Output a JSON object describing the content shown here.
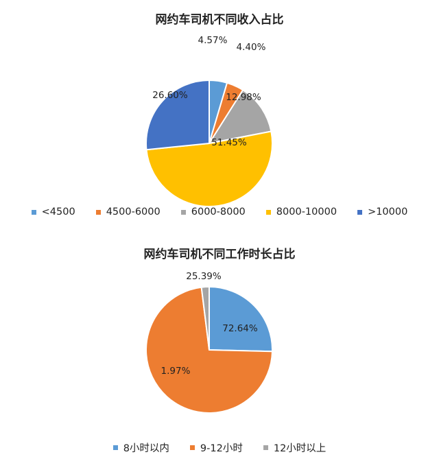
{
  "chart_data": [
    {
      "type": "pie",
      "title": "网约车司机不同收入占比",
      "categories": [
        "<4500",
        "4500-6000",
        "6000-8000",
        "8000-10000",
        ">10000"
      ],
      "values": [
        4.57,
        4.4,
        12.98,
        51.45,
        26.6
      ],
      "labels": [
        "4.57%",
        "4.40%",
        "12.98%",
        "51.45%",
        "26.60%"
      ],
      "colors": [
        "#5B9BD5",
        "#ED7D31",
        "#A5A5A5",
        "#FFC000",
        "#4472C4"
      ],
      "legend_position": "bottom"
    },
    {
      "type": "pie",
      "title": "网约车司机不同工作时长占比",
      "categories": [
        "8小时以内",
        "9-12小时",
        "12小时以上"
      ],
      "values": [
        25.39,
        72.64,
        1.97
      ],
      "labels": [
        "25.39%",
        "72.64%",
        "1.97%"
      ],
      "colors": [
        "#5B9BD5",
        "#ED7D31",
        "#A5A5A5"
      ],
      "legend_position": "bottom"
    }
  ]
}
